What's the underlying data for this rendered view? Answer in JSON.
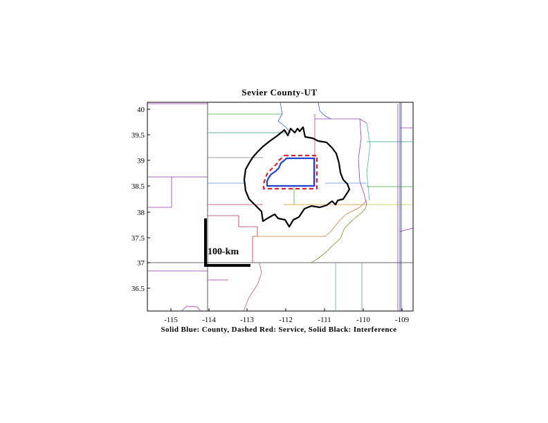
{
  "map": {
    "title": "Sevier County-UT",
    "caption": "Solid Blue: County, Dashed Red: Service, Solid Black: Interference",
    "scale_bar_label": "100-km",
    "x_ticks": [
      "-115",
      "-114",
      "-113",
      "-112",
      "-111",
      "-110",
      "-109"
    ],
    "y_ticks": [
      "40",
      "39.5",
      "39",
      "38.5",
      "38",
      "37.5",
      "37",
      "36.5"
    ],
    "colors": {
      "county": "#1f3fd0",
      "service": "#e0202a",
      "interference": "#000000"
    }
  }
}
